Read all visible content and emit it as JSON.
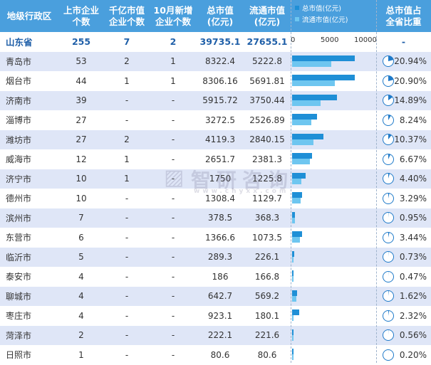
{
  "header": {
    "col_region": "地级行政区",
    "col_companies": "上市企业\n个数",
    "col_trillion": "千亿市值\n企业个数",
    "col_new": "10月新增\n企业个数",
    "col_total": "总市值\n(亿元)",
    "col_float": "流通市值\n(亿元)",
    "col_share": "总市值占\n全省比重"
  },
  "legend": {
    "total_label": "总市值(亿元)",
    "float_label": "流通市值(亿元)"
  },
  "colors": {
    "header_bg": "#4a9fdd",
    "total_bar": "#1f8fd6",
    "float_bar": "#6ec6f0",
    "row_alt": "#dfe6f7",
    "pie_fill": "#1f7ac9"
  },
  "summary": {
    "region": "山东省",
    "companies": "255",
    "trillion": "7",
    "new": "2",
    "total": "39735.1",
    "float": "27655.1",
    "share": "-"
  },
  "watermark": {
    "brand": "智研咨询",
    "site": "www.chyxx.com"
  },
  "chart_data": {
    "type": "table",
    "title": "",
    "axis": {
      "ticks": [
        "0",
        "5000",
        "10000"
      ],
      "range": [
        0,
        10000
      ]
    },
    "series": [
      {
        "name": "总市值(亿元)"
      },
      {
        "name": "流通市值(亿元)"
      }
    ],
    "rows": [
      {
        "region": "青岛市",
        "companies": "53",
        "trillion": "2",
        "new": "1",
        "total": 8322.4,
        "total_text": "8322.4",
        "float": 5222.8,
        "float_text": "5222.8",
        "share": 20.94,
        "share_text": "20.94%"
      },
      {
        "region": "烟台市",
        "companies": "44",
        "trillion": "1",
        "new": "1",
        "total": 8306.16,
        "total_text": "8306.16",
        "float": 5691.81,
        "float_text": "5691.81",
        "share": 20.9,
        "share_text": "20.90%"
      },
      {
        "region": "济南市",
        "companies": "39",
        "trillion": "-",
        "new": "-",
        "total": 5915.72,
        "total_text": "5915.72",
        "float": 3750.44,
        "float_text": "3750.44",
        "share": 14.89,
        "share_text": "14.89%"
      },
      {
        "region": "淄博市",
        "companies": "27",
        "trillion": "-",
        "new": "-",
        "total": 3272.5,
        "total_text": "3272.5",
        "float": 2526.89,
        "float_text": "2526.89",
        "share": 8.24,
        "share_text": "8.24%"
      },
      {
        "region": "潍坊市",
        "companies": "27",
        "trillion": "2",
        "new": "-",
        "total": 4119.3,
        "total_text": "4119.3",
        "float": 2840.15,
        "float_text": "2840.15",
        "share": 10.37,
        "share_text": "10.37%"
      },
      {
        "region": "威海市",
        "companies": "12",
        "trillion": "1",
        "new": "-",
        "total": 2651.7,
        "total_text": "2651.7",
        "float": 2381.3,
        "float_text": "2381.3",
        "share": 6.67,
        "share_text": "6.67%"
      },
      {
        "region": "济宁市",
        "companies": "10",
        "trillion": "1",
        "new": "-",
        "total": 1750,
        "total_text": "1750",
        "float": 1225.8,
        "float_text": "1225.8",
        "share": 4.4,
        "share_text": "4.40%"
      },
      {
        "region": "德州市",
        "companies": "10",
        "trillion": "-",
        "new": "-",
        "total": 1308.4,
        "total_text": "1308.4",
        "float": 1129.7,
        "float_text": "1129.7",
        "share": 3.29,
        "share_text": "3.29%"
      },
      {
        "region": "滨州市",
        "companies": "7",
        "trillion": "-",
        "new": "-",
        "total": 378.5,
        "total_text": "378.5",
        "float": 368.3,
        "float_text": "368.3",
        "share": 0.95,
        "share_text": "0.95%"
      },
      {
        "region": "东营市",
        "companies": "6",
        "trillion": "-",
        "new": "-",
        "total": 1366.6,
        "total_text": "1366.6",
        "float": 1073.5,
        "float_text": "1073.5",
        "share": 3.44,
        "share_text": "3.44%"
      },
      {
        "region": "临沂市",
        "companies": "5",
        "trillion": "-",
        "new": "-",
        "total": 289.3,
        "total_text": "289.3",
        "float": 226.1,
        "float_text": "226.1",
        "share": 0.73,
        "share_text": "0.73%"
      },
      {
        "region": "泰安市",
        "companies": "4",
        "trillion": "-",
        "new": "-",
        "total": 186,
        "total_text": "186",
        "float": 166.8,
        "float_text": "166.8",
        "share": 0.47,
        "share_text": "0.47%"
      },
      {
        "region": "聊城市",
        "companies": "4",
        "trillion": "-",
        "new": "-",
        "total": 642.7,
        "total_text": "642.7",
        "float": 569.2,
        "float_text": "569.2",
        "share": 1.62,
        "share_text": "1.62%"
      },
      {
        "region": "枣庄市",
        "companies": "4",
        "trillion": "-",
        "new": "-",
        "total": 923.1,
        "total_text": "923.1",
        "float": 180.1,
        "float_text": "180.1",
        "share": 2.32,
        "share_text": "2.32%"
      },
      {
        "region": "菏泽市",
        "companies": "2",
        "trillion": "-",
        "new": "-",
        "total": 222.1,
        "total_text": "222.1",
        "float": 221.6,
        "float_text": "221.6",
        "share": 0.56,
        "share_text": "0.56%"
      },
      {
        "region": "日照市",
        "companies": "1",
        "trillion": "-",
        "new": "-",
        "total": 80.6,
        "total_text": "80.6",
        "float": 80.6,
        "float_text": "80.6",
        "share": 0.2,
        "share_text": "0.20%"
      }
    ]
  }
}
